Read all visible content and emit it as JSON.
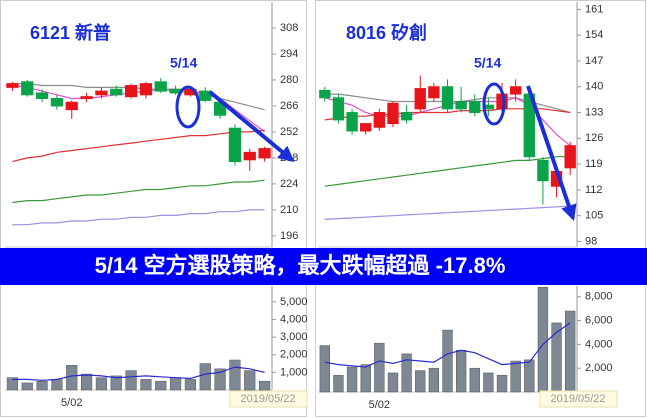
{
  "banner": "5/14 空方選股策略，最大跌幅超過 -17.8%",
  "chart_data": [
    {
      "type": "candlestick",
      "title": "6121 新普",
      "annotation": "5/14",
      "open": [
        276,
        279,
        273,
        270,
        264,
        270,
        272,
        275,
        271,
        272,
        279,
        275,
        272,
        274,
        268,
        254,
        237,
        238
      ],
      "high": [
        279,
        280,
        275,
        272,
        269,
        273,
        276,
        277,
        278,
        279,
        281,
        277,
        276,
        276,
        270,
        256,
        243,
        244
      ],
      "low": [
        274,
        271,
        268,
        264,
        259,
        268,
        270,
        271,
        270,
        270,
        273,
        272,
        271,
        268,
        259,
        234,
        231,
        236
      ],
      "close": [
        278,
        272,
        270,
        266,
        268,
        271,
        274,
        272,
        277,
        278,
        274,
        273,
        275,
        269,
        261,
        236,
        241,
        243
      ],
      "up_color": "#e8141b",
      "down_color": "#0aa34a",
      "series": [
        {
          "color": "#8c8c8c",
          "values": [
            278,
            278,
            277,
            277,
            277,
            276,
            276,
            276,
            276,
            275,
            275,
            274,
            273,
            272,
            270,
            268,
            266,
            264
          ]
        },
        {
          "color": "#e04fd0",
          "values": [
            277,
            276,
            274,
            272,
            270,
            270,
            271,
            272,
            273,
            274,
            275,
            275,
            274,
            273,
            270,
            264,
            258,
            252
          ]
        },
        {
          "color": "#e03030",
          "values": [
            236,
            238,
            239,
            241,
            242,
            243,
            244,
            245,
            246,
            247,
            248,
            249,
            250,
            250,
            251,
            252,
            252,
            253
          ]
        },
        {
          "color": "#3a9a3a",
          "values": [
            214,
            215,
            215,
            216,
            217,
            218,
            218,
            219,
            220,
            221,
            221,
            222,
            223,
            223,
            224,
            225,
            225,
            226
          ]
        },
        {
          "color": "#a08ce0",
          "values": [
            202,
            202,
            203,
            203,
            204,
            204,
            205,
            205,
            206,
            206,
            207,
            207,
            208,
            208,
            209,
            209,
            210,
            210
          ]
        }
      ],
      "ylim": [
        190,
        322
      ],
      "yticks": [
        196,
        210,
        224,
        238,
        252,
        266,
        280,
        294,
        308
      ]
    },
    {
      "type": "bar",
      "annotation": "2019/05/22",
      "categories": [
        null,
        null,
        null,
        null,
        "5/02",
        null,
        null,
        null,
        null,
        null,
        null,
        null,
        null,
        null,
        null,
        null,
        null,
        null
      ],
      "values": [
        700,
        400,
        500,
        600,
        1400,
        900,
        700,
        800,
        1100,
        600,
        500,
        700,
        600,
        1500,
        1200,
        1700,
        1100,
        500
      ],
      "color": "#7d8894",
      "series": [
        {
          "color": "#2a2ad0",
          "values": [
            600,
            600,
            550,
            600,
            800,
            850,
            800,
            700,
            750,
            800,
            750,
            700,
            650,
            900,
            1000,
            1300,
            1200,
            1000
          ]
        }
      ],
      "ylim": [
        0,
        5900
      ],
      "yticks": [
        {
          "value": 1000,
          "label": "1,000"
        },
        {
          "value": 2000,
          "label": "2,000"
        },
        {
          "value": 3000,
          "label": "3,000"
        },
        {
          "value": 4000,
          "label": "4,000"
        },
        {
          "value": 5000,
          "label": "5,000"
        }
      ]
    },
    {
      "type": "candlestick",
      "title": "8016 矽創",
      "annotation": "5/14",
      "open": [
        139,
        137,
        133,
        128,
        129,
        130,
        133,
        134,
        137,
        140,
        136,
        136,
        135,
        134,
        138,
        138,
        120,
        113,
        118
      ],
      "high": [
        140,
        138,
        134,
        130,
        134,
        136,
        135,
        143,
        141,
        142,
        140,
        138,
        137,
        141,
        142,
        139,
        121,
        119,
        125
      ],
      "low": [
        136,
        130,
        127,
        127,
        128,
        129,
        130,
        133,
        136,
        133,
        133,
        132,
        132,
        133,
        136,
        120,
        108,
        110,
        116
      ],
      "close": [
        137,
        131,
        128,
        130,
        133,
        135.5,
        131,
        139.5,
        140,
        134,
        134,
        133,
        134,
        138,
        140,
        121,
        114.5,
        117,
        124
      ],
      "up_color": "#e8141b",
      "down_color": "#0aa34a",
      "series": [
        {
          "color": "#8c8c8c",
          "values": [
            138,
            138,
            137.5,
            137,
            136.5,
            136,
            136,
            136,
            136,
            136,
            136,
            136.5,
            137,
            137,
            137,
            136,
            135,
            134,
            133
          ]
        },
        {
          "color": "#e04fd0",
          "values": [
            137,
            136,
            135,
            133,
            132,
            132,
            132,
            133,
            134,
            135,
            136,
            136,
            136,
            136,
            137,
            135,
            131,
            127,
            124
          ]
        },
        {
          "color": "#e03030",
          "values": [
            131,
            131.5,
            132,
            132,
            132.5,
            132.5,
            133,
            133,
            133,
            133,
            133.5,
            133.5,
            133.5,
            134,
            134,
            134,
            134,
            133.5,
            133
          ]
        },
        {
          "color": "#3a9a3a",
          "values": [
            113,
            113.5,
            114,
            114.5,
            115,
            115.5,
            116,
            116.5,
            117,
            117.5,
            118,
            118.5,
            119,
            119.5,
            120,
            120,
            120.5,
            121,
            121
          ]
        },
        {
          "color": "#a08ce0",
          "values": [
            104,
            104.2,
            104.4,
            104.6,
            104.8,
            105,
            105.2,
            105.4,
            105.6,
            105.8,
            106,
            106.2,
            106.4,
            106.6,
            106.8,
            107,
            107.2,
            107.4,
            107.6
          ]
        }
      ],
      "ylim": [
        96.5,
        163
      ],
      "yticks": [
        98,
        105,
        112,
        119,
        126,
        133,
        140,
        147,
        154,
        161
      ]
    },
    {
      "type": "bar",
      "annotation": "2019/05/22",
      "categories": [
        null,
        null,
        null,
        null,
        "5/02",
        null,
        null,
        null,
        null,
        null,
        null,
        null,
        null,
        null,
        null,
        null,
        null,
        null,
        null
      ],
      "values": [
        3900,
        1400,
        2100,
        2300,
        4100,
        1600,
        3200,
        1800,
        2000,
        5200,
        3500,
        2000,
        1600,
        1400,
        2600,
        2700,
        8800,
        5800,
        6800
      ],
      "color": "#7d8894",
      "series": [
        {
          "color": "#2a2ad0",
          "values": [
            2500,
            2300,
            2200,
            2100,
            2600,
            2400,
            2700,
            2600,
            2500,
            3200,
            3500,
            3300,
            2800,
            2300,
            2400,
            2500,
            4000,
            5000,
            5800
          ]
        }
      ],
      "ylim": [
        0,
        8900
      ],
      "yticks": [
        {
          "value": 2000,
          "label": "2,000"
        },
        {
          "value": 4000,
          "label": "4,000"
        },
        {
          "value": 6000,
          "label": "6,000"
        },
        {
          "value": 8000,
          "label": "8,000"
        }
      ]
    }
  ]
}
